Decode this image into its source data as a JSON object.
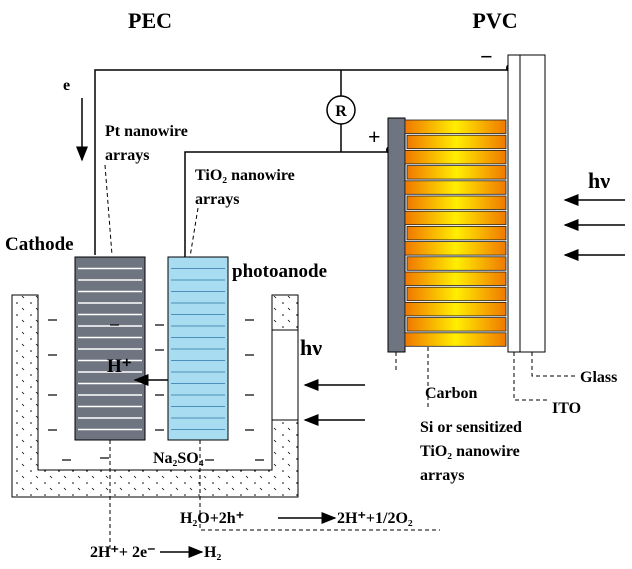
{
  "titles": {
    "pec": "PEC",
    "pvc": "PVC"
  },
  "labels": {
    "electron": "e",
    "resistor": "R",
    "plus": "+",
    "minus": "−",
    "pt": [
      "Pt nanowire",
      "arrays"
    ],
    "tio2": [
      "TiO₂ nanowire",
      "arrays"
    ],
    "cathode": "Cathode",
    "photoanode": "photoanode",
    "proton": "H⁺",
    "light_pec": "hν",
    "light_pvc": "hν",
    "electrolyte": "Na₂SO₄",
    "carbon": "Carbon",
    "glass": "Glass",
    "ito": "ITO",
    "absorber": [
      "Si or sensitized",
      "TiO₂ nanowire",
      "arrays"
    ]
  },
  "reactions": {
    "anode": {
      "left": "H₂O+2h⁺",
      "right": "2H⁺+1/2O₂"
    },
    "cathode": {
      "left": "2H⁺+ 2e⁻",
      "right": "H₂"
    }
  }
}
